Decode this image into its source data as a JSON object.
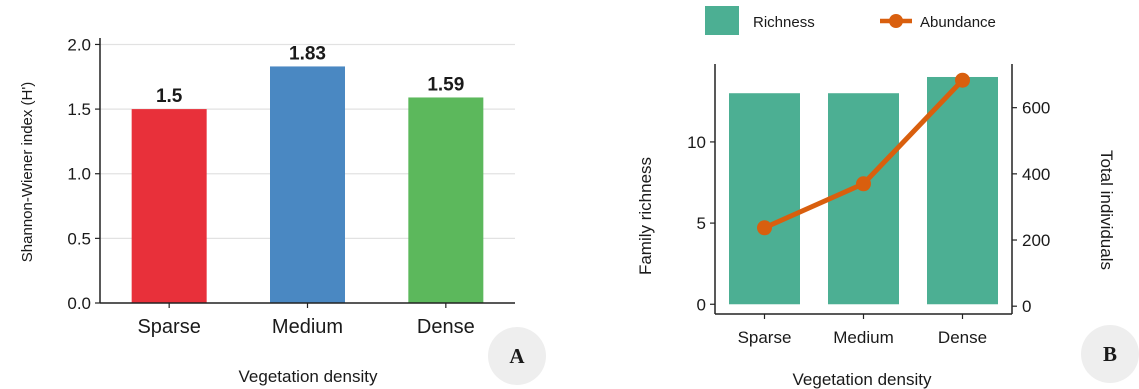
{
  "chart_data": [
    {
      "type": "bar",
      "panel_label": "A",
      "categories": [
        "Sparse",
        "Medium",
        "Dense"
      ],
      "values": [
        1.5,
        1.83,
        1.59
      ],
      "data_labels": [
        "1.5",
        "1.83",
        "1.59"
      ],
      "colors": [
        "#e8303a",
        "#4a88c2",
        "#5cb85c"
      ],
      "xlabel": "Vegetation density",
      "ylabel": "Shannon-Wiener index (H')",
      "ylim": [
        0,
        2.05
      ],
      "yticks": [
        0.0,
        0.5,
        1.0,
        1.5,
        2.0
      ],
      "ytick_labels": [
        "0.0",
        "0.5",
        "1.0",
        "1.5",
        "2.0"
      ],
      "grid": "horizontal"
    },
    {
      "type": "bar",
      "panel_label": "B",
      "categories": [
        "Sparse",
        "Medium",
        "Dense"
      ],
      "series": [
        {
          "name": "Richness",
          "kind": "bar",
          "axis": "left",
          "values": [
            13,
            13,
            14
          ],
          "color": "#4caf93"
        },
        {
          "name": "Abundance",
          "kind": "line",
          "axis": "right",
          "values": [
            237,
            370,
            683
          ],
          "color": "#d95f0e"
        }
      ],
      "xlabel": "Vegetation density",
      "ylabel": "Family richness",
      "ylabel_right": "Total individuals",
      "ylim": [
        -0.6,
        14.8
      ],
      "ylim_right": [
        -23.6,
        732
      ],
      "yticks": [
        0,
        5,
        10
      ],
      "yticks_right": [
        0,
        200,
        400,
        600
      ],
      "legend_position": "top",
      "grid": "none"
    }
  ]
}
